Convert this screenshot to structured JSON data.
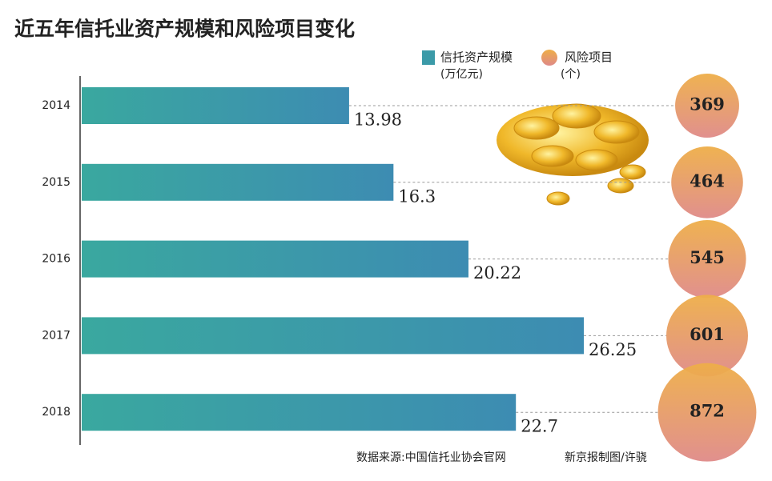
{
  "chart_data": {
    "type": "bar-bubble",
    "title": "近五年信托业资产规模和风险项目变化",
    "categories": [
      "2014",
      "2015",
      "2016",
      "2017",
      "2018"
    ],
    "xlim": [
      0,
      35
    ],
    "series": [
      {
        "name": "信托资产规模",
        "unit": "(万亿元)",
        "color": "#3b9aa8",
        "values": [
          13.98,
          16.3,
          20.22,
          26.25,
          22.7
        ]
      },
      {
        "name": "风险项目",
        "unit": "(个)",
        "color": "#e6a064",
        "values": [
          369,
          464,
          545,
          601,
          872
        ]
      }
    ],
    "source": "数据来源:中国信托业协会官网",
    "credit": "新京报制图/许骁"
  }
}
